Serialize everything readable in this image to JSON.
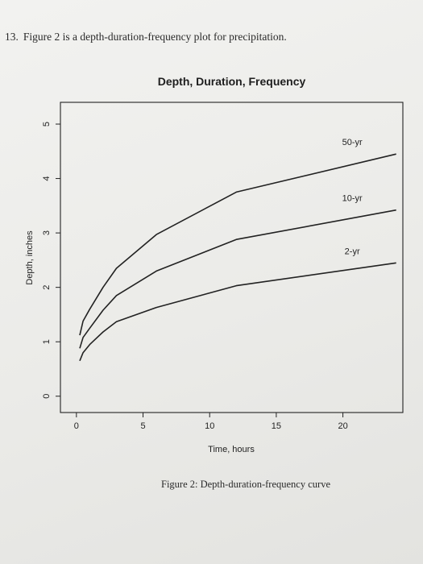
{
  "problem": {
    "number": "13.",
    "text": "Figure 2 is a depth-duration-frequency plot for precipitation."
  },
  "caption": "Figure 2: Depth-duration-frequency curve",
  "colors": {
    "ink": "#222222",
    "background": "#eeeeec"
  },
  "chart_data": {
    "type": "line",
    "title": "Depth, Duration, Frequency",
    "xlabel": "Time, hours",
    "ylabel": "Depth, inches",
    "xlim": [
      -1.2,
      24.5
    ],
    "ylim": [
      -0.3,
      5.4
    ],
    "xticks": [
      0,
      5,
      10,
      15,
      20
    ],
    "yticks": [
      0,
      1,
      2,
      3,
      4,
      5
    ],
    "grid": false,
    "legend": "inline labels",
    "series": [
      {
        "name": "50-yr",
        "x": [
          0.25,
          0.5,
          1,
          2,
          3,
          6,
          12,
          24
        ],
        "y": [
          1.12,
          1.38,
          1.6,
          2.0,
          2.35,
          2.97,
          3.75,
          4.45
        ]
      },
      {
        "name": "10-yr",
        "x": [
          0.25,
          0.5,
          1,
          2,
          3,
          6,
          12,
          24
        ],
        "y": [
          0.88,
          1.08,
          1.25,
          1.58,
          1.85,
          2.3,
          2.88,
          3.42
        ]
      },
      {
        "name": "2-yr",
        "x": [
          0.25,
          0.5,
          1,
          2,
          3,
          6,
          12,
          24
        ],
        "y": [
          0.65,
          0.8,
          0.95,
          1.18,
          1.37,
          1.63,
          2.03,
          2.45
        ]
      }
    ]
  }
}
